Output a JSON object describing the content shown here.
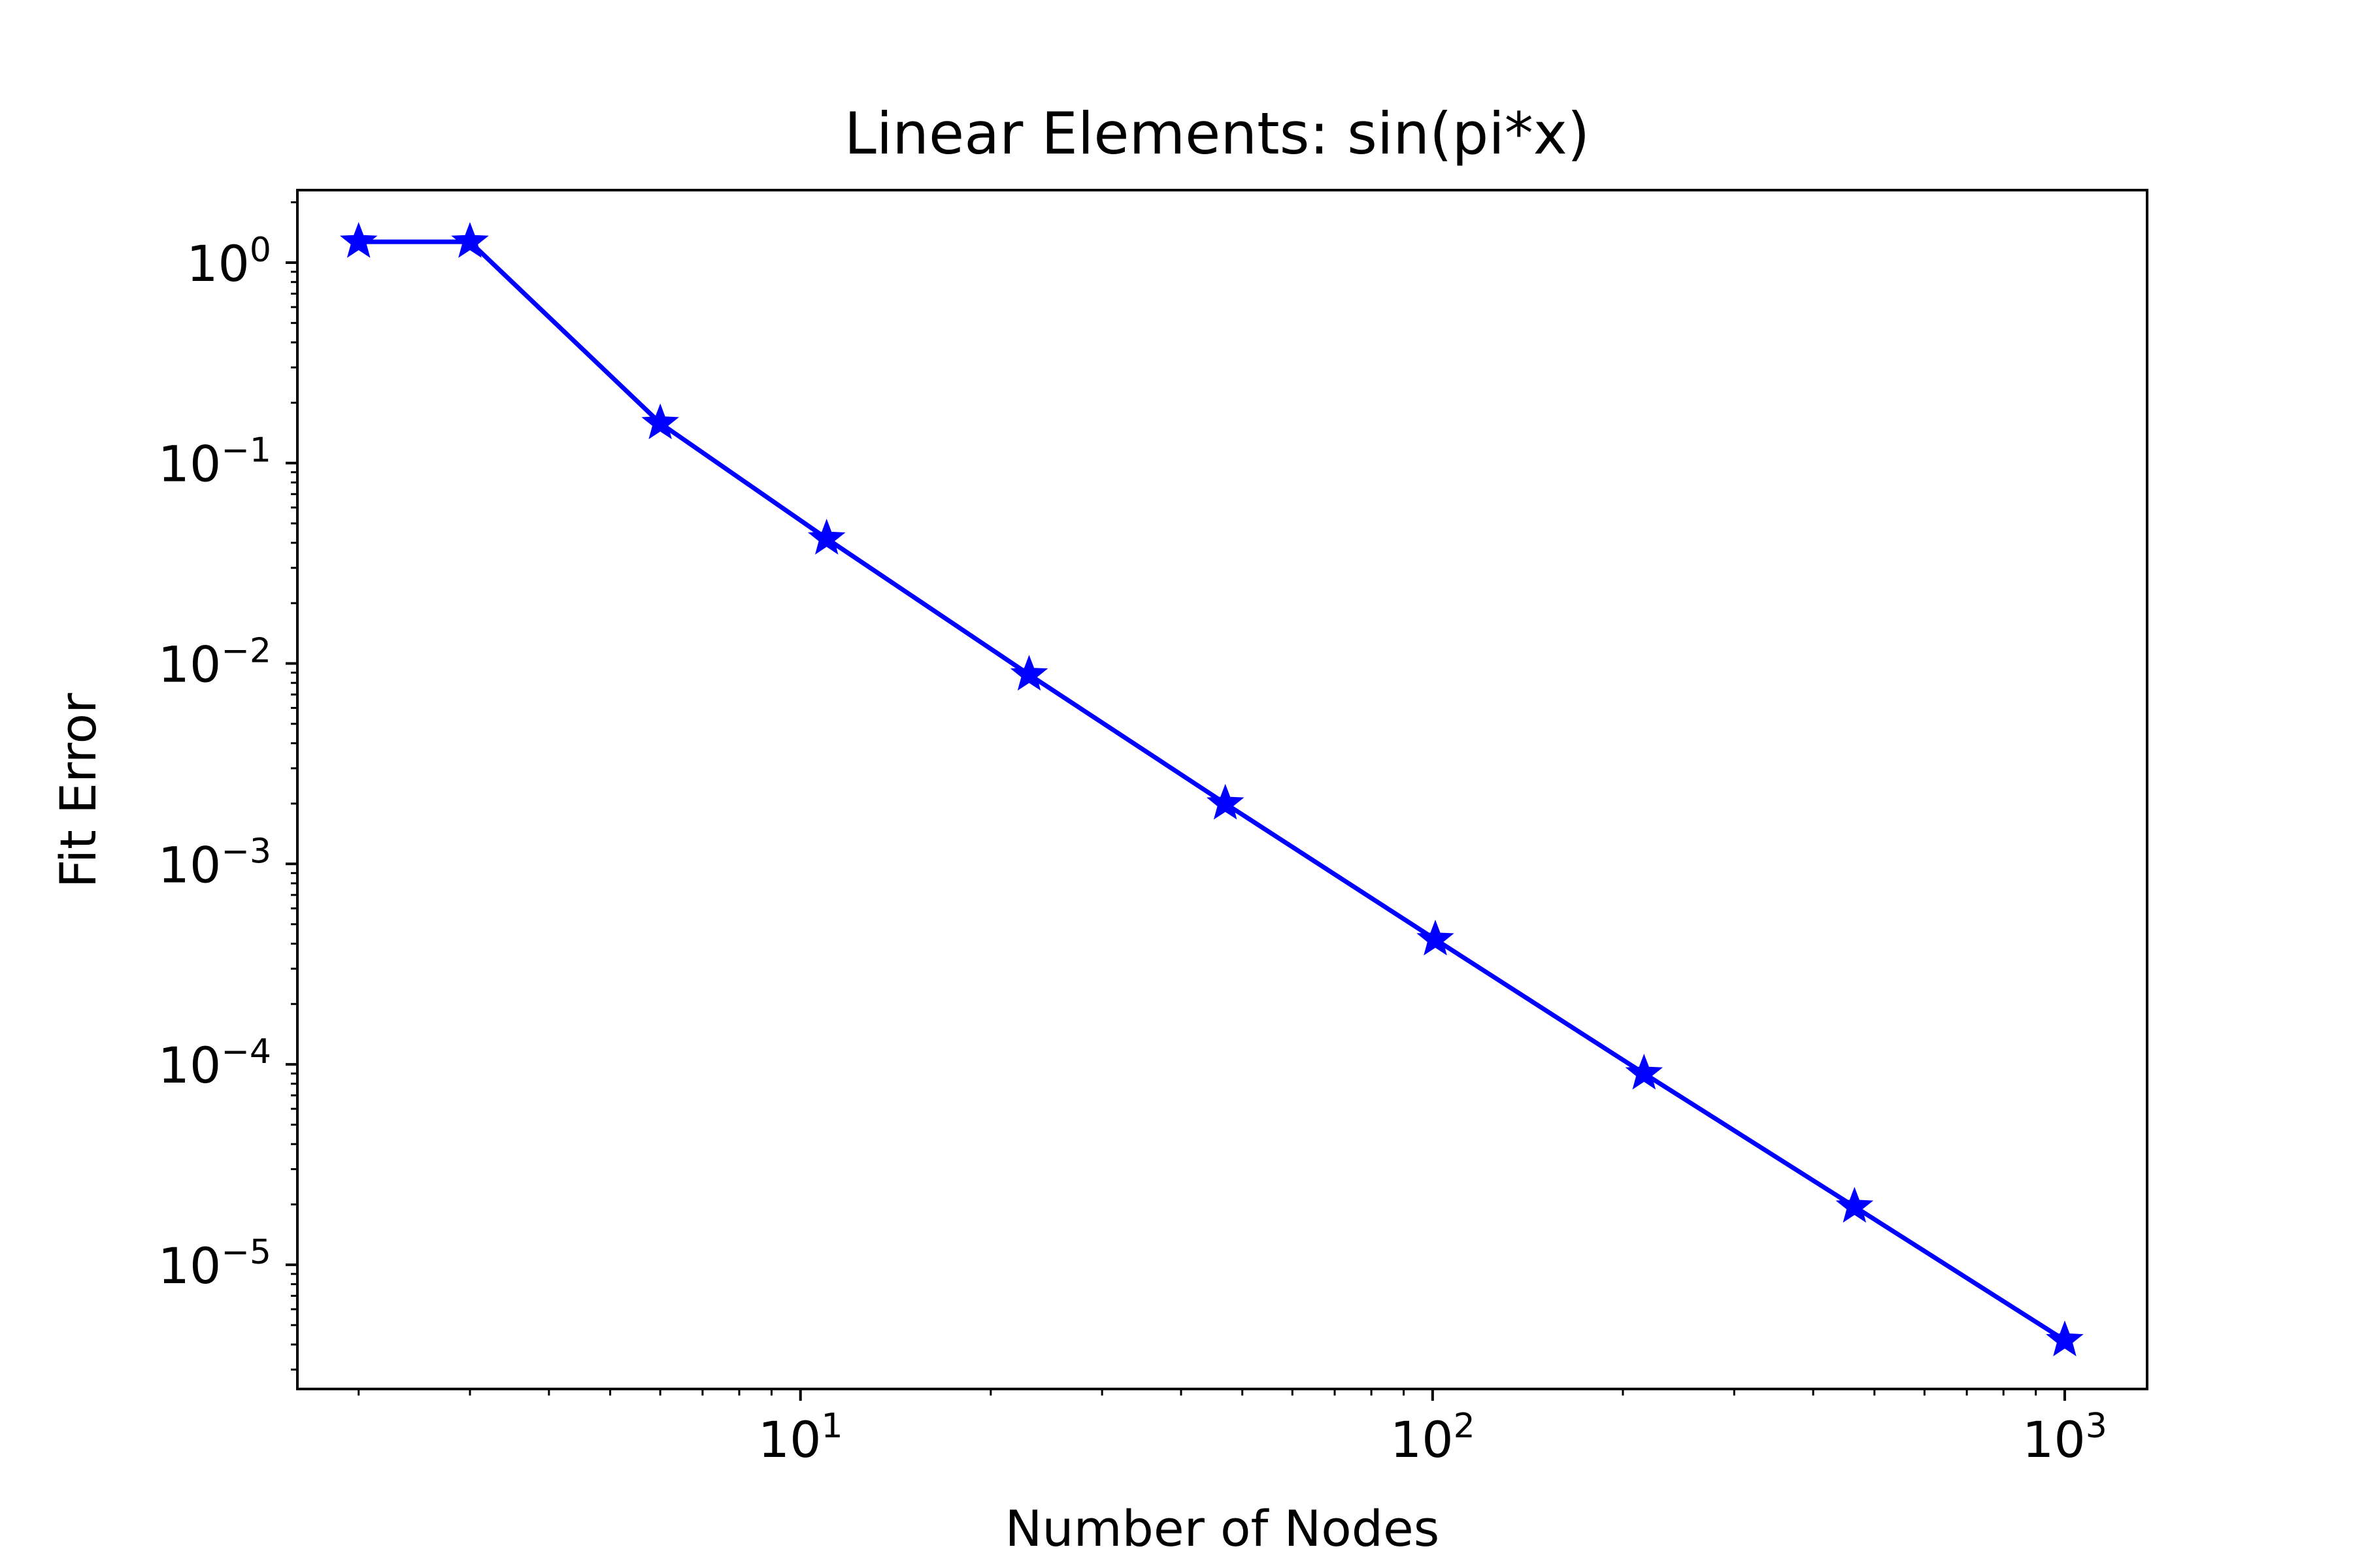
{
  "chart_data": {
    "type": "line",
    "title": "Linear Elements: sin(pi*x)",
    "xlabel": "Number of Nodes",
    "ylabel": "Fit Error",
    "xscale": "log",
    "yscale": "log",
    "xlim": [
      1.6,
      1350
    ],
    "ylim": [
      2.4e-06,
      2.3
    ],
    "grid": false,
    "legend": "none",
    "x_ticks": [
      {
        "value": 10,
        "base": "10",
        "exp": "1"
      },
      {
        "value": 100,
        "base": "10",
        "exp": "2"
      },
      {
        "value": 1000,
        "base": "10",
        "exp": "3"
      }
    ],
    "y_ticks": [
      {
        "value": 1,
        "base": "10",
        "exp": "0"
      },
      {
        "value": 0.1,
        "base": "10",
        "exp": "−1"
      },
      {
        "value": 0.01,
        "base": "10",
        "exp": "−2"
      },
      {
        "value": 0.001,
        "base": "10",
        "exp": "−3"
      },
      {
        "value": 0.0001,
        "base": "10",
        "exp": "−4"
      },
      {
        "value": 1e-05,
        "base": "10",
        "exp": "−5"
      }
    ],
    "series": [
      {
        "color": "#0000ff",
        "marker": "star",
        "x": [
          2,
          3,
          6,
          11,
          23,
          47,
          101,
          216,
          465,
          1000
        ],
        "y": [
          1.27,
          1.27,
          0.158,
          0.042,
          0.0088,
          0.002,
          0.00042,
          9e-05,
          1.95e-05,
          4.2e-06
        ]
      }
    ]
  }
}
